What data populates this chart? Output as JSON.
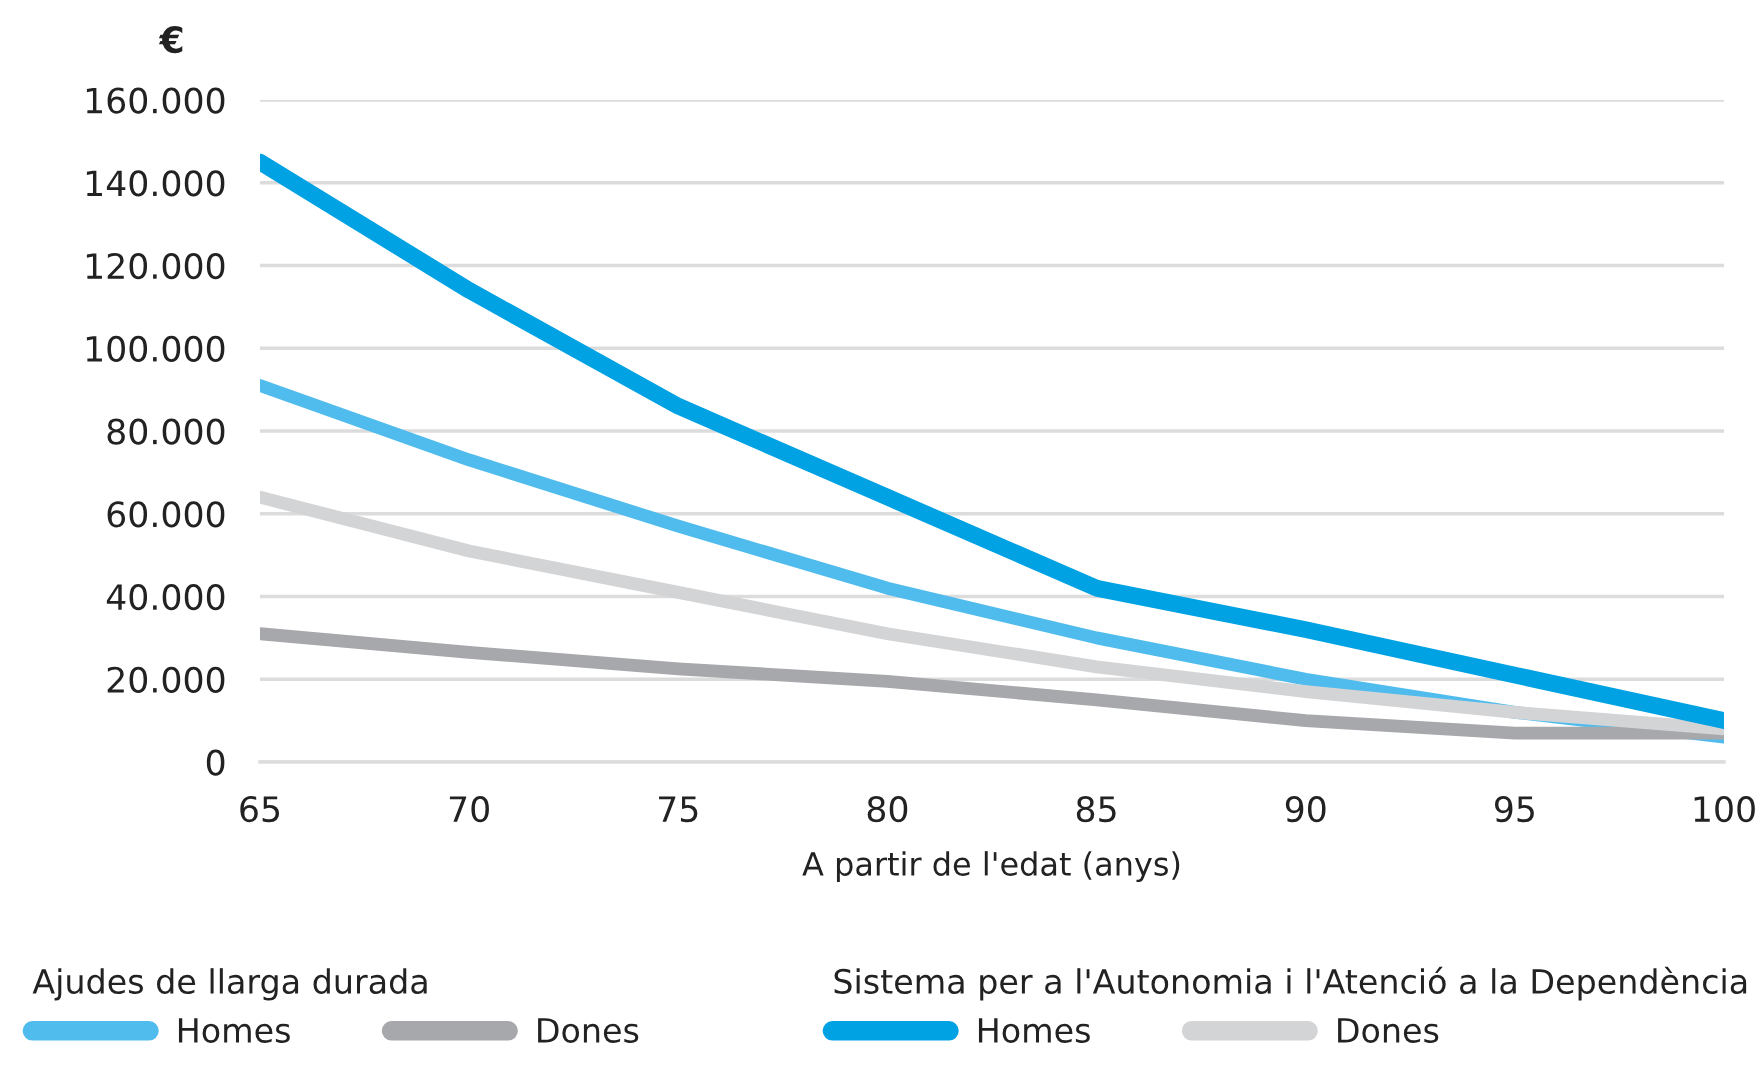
{
  "chart_data": {
    "type": "line",
    "x": [
      65,
      70,
      75,
      80,
      85,
      90,
      95,
      100
    ],
    "xlabel": "A partir de l'edat (anys)",
    "ylabel": "€",
    "legend_title": [
      "Ajudes de llarga durada",
      "Sistema per a l'Autonomia i l'Atenció a la Dependència"
    ],
    "series": [
      {
        "name": "Homes",
        "color": "#50bced",
        "values": [
          91000,
          73000,
          57000,
          42000,
          30000,
          20000,
          12000,
          6000
        ]
      },
      {
        "name": "Dones",
        "color": "#a7a8ac",
        "values": [
          31000,
          26500,
          22500,
          19500,
          15000,
          10000,
          7000,
          7000
        ]
      },
      {
        "name": "Homes",
        "color": "#00a2e3",
        "values": [
          145000,
          114000,
          86000,
          64000,
          42000,
          32000,
          21000,
          10000
        ]
      },
      {
        "name": "Dones",
        "color": "#d3d4d6",
        "values": [
          64000,
          51000,
          41000,
          31000,
          23000,
          17000,
          12000,
          8000
        ]
      }
    ],
    "xlim": [
      65,
      100
    ],
    "xticks": [
      65,
      70,
      75,
      80,
      85,
      90,
      95,
      100
    ],
    "ylim": [
      0,
      160000
    ],
    "yticks": [
      {
        "value": 0,
        "label": "0"
      },
      {
        "value": 20000,
        "label": "20.000"
      },
      {
        "value": 40000,
        "label": "40.000"
      },
      {
        "value": 60000,
        "label": "60.000"
      },
      {
        "value": 80000,
        "label": "80.000"
      },
      {
        "value": 100000,
        "label": "100.000"
      },
      {
        "value": 120000,
        "label": "120.000"
      },
      {
        "value": 140000,
        "label": "140.000"
      },
      {
        "value": 160000,
        "label": "160.000"
      }
    ],
    "grid": "y",
    "legend": "bottom",
    "marker": "none",
    "line_style": "solid"
  }
}
